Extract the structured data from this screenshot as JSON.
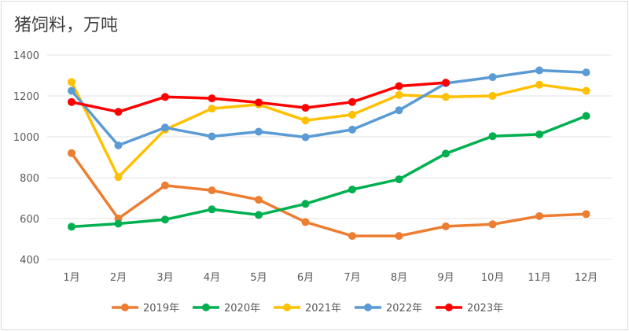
{
  "chart_data": {
    "type": "line",
    "title": "猪饲料，万吨",
    "categories": [
      "1月",
      "2月",
      "3月",
      "4月",
      "5月",
      "6月",
      "7月",
      "8月",
      "9月",
      "10月",
      "11月",
      "12月"
    ],
    "yticks": [
      400,
      600,
      800,
      1000,
      1200,
      1400
    ],
    "ylim": [
      400,
      1400
    ],
    "grid": true,
    "legend_position": "bottom",
    "series": [
      {
        "name": "2019年",
        "color": "#ED7D31",
        "values": [
          920,
          600,
          762,
          738,
          692,
          583,
          515,
          515,
          562,
          572,
          612,
          622
        ]
      },
      {
        "name": "2020年",
        "color": "#00B050",
        "values": [
          560,
          575,
          595,
          645,
          618,
          672,
          742,
          792,
          918,
          1003,
          1012,
          1102
        ]
      },
      {
        "name": "2021年",
        "color": "#FFC000",
        "values": [
          1268,
          803,
          1035,
          1138,
          1158,
          1080,
          1108,
          1205,
          1195,
          1200,
          1255,
          1225
        ]
      },
      {
        "name": "2022年",
        "color": "#5B9BD5",
        "values": [
          1225,
          958,
          1045,
          1002,
          1025,
          998,
          1035,
          1130,
          1262,
          1292,
          1325,
          1315
        ]
      },
      {
        "name": "2023年",
        "color": "#FF0000",
        "values": [
          1170,
          1122,
          1195,
          1188,
          1168,
          1142,
          1170,
          1248,
          1265,
          null,
          null,
          null
        ]
      }
    ]
  }
}
